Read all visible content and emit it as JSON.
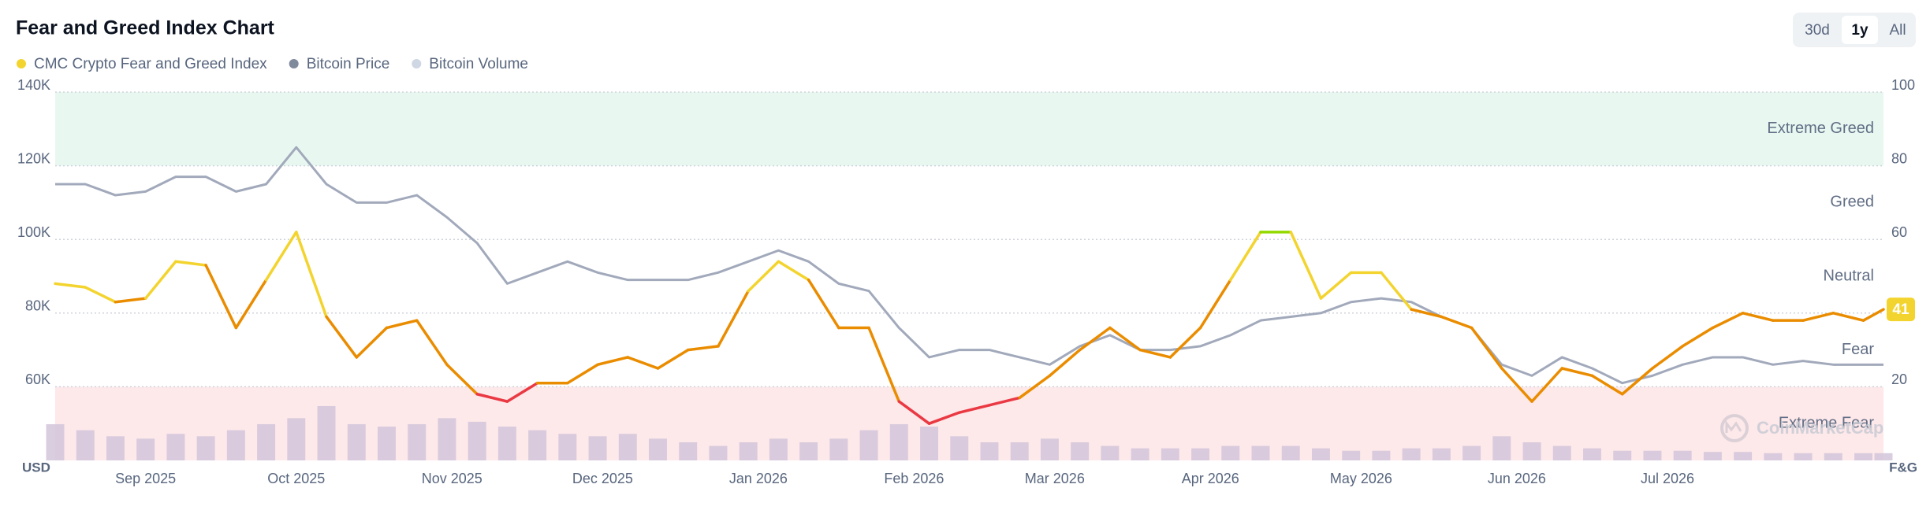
{
  "chart_data": {
    "type": "line",
    "title": "Fear and Greed Index Chart",
    "buttons": [
      "30d",
      "1y",
      "All"
    ],
    "selected_button": "1y",
    "ylabel": "USD",
    "y2label": "F&G",
    "watermark": "CoinMarketCap",
    "x": [
      0,
      6,
      12,
      18,
      24,
      30,
      36,
      42,
      48,
      54,
      60,
      66,
      72,
      78,
      84,
      90,
      96,
      102,
      108,
      114,
      120,
      126,
      132,
      138,
      144,
      150,
      156,
      162,
      168,
      174,
      180,
      186,
      192,
      198,
      204,
      210,
      216,
      222,
      228,
      234,
      240,
      246,
      252,
      258,
      264,
      270,
      276,
      282,
      288,
      294,
      300,
      306,
      312,
      318,
      324,
      330,
      336,
      342,
      348,
      354,
      360,
      364
    ],
    "xlim": [
      0,
      364
    ],
    "xticks": [
      {
        "value": 18,
        "label": "Sep 2025"
      },
      {
        "value": 48,
        "label": "Oct 2025"
      },
      {
        "value": 79,
        "label": "Nov 2025"
      },
      {
        "value": 109,
        "label": "Dec 2025"
      },
      {
        "value": 140,
        "label": "Jan 2026"
      },
      {
        "value": 171,
        "label": "Feb 2026"
      },
      {
        "value": 199,
        "label": "Mar 2026"
      },
      {
        "value": 230,
        "label": "Apr 2026"
      },
      {
        "value": 260,
        "label": "May 2026"
      },
      {
        "value": 291,
        "label": "Jun 2026"
      },
      {
        "value": 321,
        "label": "Jul 2026"
      }
    ],
    "ylim": [
      40000,
      140000
    ],
    "yticks": [
      {
        "value": 60000,
        "label": "60K"
      },
      {
        "value": 80000,
        "label": "80K"
      },
      {
        "value": 100000,
        "label": "100K"
      },
      {
        "value": 120000,
        "label": "120K"
      },
      {
        "value": 140000,
        "label": "140K"
      }
    ],
    "y2lim": [
      0,
      100
    ],
    "y2ticks": [
      20,
      40,
      60,
      80,
      100
    ],
    "y3lim": [
      0,
      305
    ],
    "grid": true,
    "zones": [
      {
        "label": "Extreme Greed",
        "range": [
          80,
          100
        ],
        "color": "#e8f8f1"
      },
      {
        "label": "Greed",
        "range": [
          60,
          80
        ]
      },
      {
        "label": "Neutral",
        "range": [
          40,
          60
        ]
      },
      {
        "label": "Fear",
        "range": [
          20,
          40
        ]
      },
      {
        "label": "Extreme Fear",
        "range": [
          0,
          20
        ],
        "color": "#fde8ea"
      }
    ],
    "series": [
      {
        "name": "CMC Crypto Fear and Greed Index",
        "color": "#f3d42f",
        "axis": "y2",
        "segment_colors": [
          {
            "below": 20,
            "color": "#ea3943"
          },
          {
            "below": 45,
            "color": "#ea8c00"
          },
          {
            "below": 60,
            "color": "#f3d42f"
          },
          {
            "color": "#93d900"
          }
        ],
        "values": [
          48,
          47,
          43,
          44,
          54,
          53,
          36,
          49,
          62,
          39,
          28,
          36,
          38,
          26,
          18,
          16,
          21,
          21,
          26,
          28,
          25,
          30,
          31,
          46,
          54,
          49,
          36,
          36,
          16,
          10,
          13,
          15,
          17,
          23,
          30,
          36,
          30,
          28,
          36,
          49,
          62,
          62,
          44,
          51,
          51,
          41,
          39,
          36,
          25,
          16,
          25,
          23,
          18,
          25,
          31,
          36,
          40,
          38,
          38,
          40,
          38,
          41
        ]
      },
      {
        "name": "Bitcoin Price",
        "color": "#a1a9bb",
        "axis": "y",
        "values": [
          115000,
          115000,
          112000,
          113000,
          117000,
          117000,
          113000,
          115000,
          125000,
          115000,
          110000,
          110000,
          112000,
          106000,
          99000,
          88000,
          91000,
          94000,
          91000,
          89000,
          89000,
          89000,
          91000,
          94000,
          97000,
          94000,
          88000,
          86000,
          76000,
          68000,
          70000,
          70000,
          68000,
          66000,
          71000,
          74000,
          70000,
          70000,
          71000,
          74000,
          78000,
          79000,
          80000,
          83000,
          84000,
          83000,
          79000,
          76000,
          66000,
          63000,
          68000,
          65000,
          61000,
          63000,
          66000,
          68000,
          68000,
          66000,
          67000,
          66000,
          66000,
          66000
        ]
      },
      {
        "name": "Bitcoin Volume",
        "color": "#d2c6da",
        "axis": "y3",
        "values": [
          30,
          25,
          20,
          18,
          22,
          20,
          25,
          30,
          35,
          45,
          30,
          28,
          30,
          35,
          32,
          28,
          25,
          22,
          20,
          22,
          18,
          15,
          12,
          15,
          18,
          15,
          18,
          25,
          30,
          28,
          20,
          15,
          15,
          18,
          15,
          12,
          10,
          10,
          10,
          12,
          12,
          12,
          10,
          8,
          8,
          10,
          10,
          12,
          20,
          15,
          12,
          10,
          8,
          8,
          8,
          7,
          7,
          6,
          6,
          6,
          6,
          6
        ]
      }
    ]
  }
}
